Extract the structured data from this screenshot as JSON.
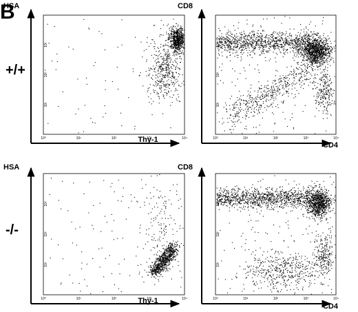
{
  "figure_label": "B",
  "axis_ticks": [
    "10⁰",
    "10¹",
    "10²",
    "10³",
    "10⁴"
  ],
  "rows": [
    {
      "genotype": "+/+",
      "panels": [
        {
          "y_label": "HSA",
          "x_label": "Thy-1"
        },
        {
          "y_label": "CD8",
          "x_label": "CD4"
        }
      ]
    },
    {
      "genotype": "-/-",
      "panels": [
        {
          "y_label": "HSA",
          "x_label": "Thy-1"
        },
        {
          "y_label": "CD8",
          "x_label": "CD4"
        }
      ]
    }
  ]
}
